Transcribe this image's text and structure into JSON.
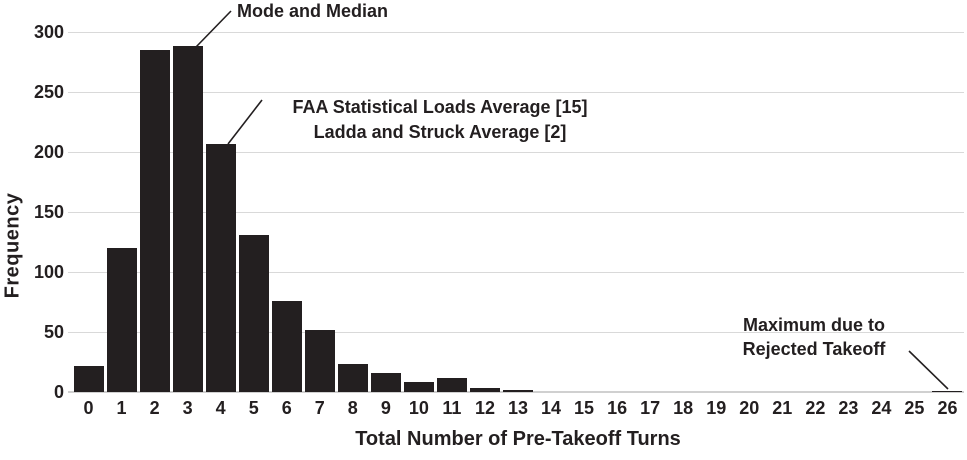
{
  "chart_data": {
    "type": "bar",
    "title": "",
    "xlabel": "Total Number of Pre-Takeoff Turns",
    "ylabel": "Frequency",
    "categories": [
      "0",
      "1",
      "2",
      "3",
      "4",
      "5",
      "6",
      "7",
      "8",
      "9",
      "10",
      "11",
      "12",
      "13",
      "14",
      "15",
      "16",
      "17",
      "18",
      "19",
      "20",
      "21",
      "22",
      "23",
      "24",
      "25",
      "26"
    ],
    "values": [
      22,
      120,
      285,
      288,
      207,
      131,
      76,
      52,
      23,
      16,
      8,
      12,
      3,
      2,
      0,
      0,
      0,
      0,
      0,
      0,
      0,
      0,
      0,
      0,
      0,
      0,
      1
    ],
    "ylim": [
      0,
      300
    ],
    "yticks": [
      0,
      50,
      100,
      150,
      200,
      250,
      300
    ],
    "grid": true,
    "legend": "none",
    "bar_color": "#231f20",
    "gridline_color": "#d9d9d9",
    "annotations": [
      {
        "id": "mode",
        "lines": [
          "Mode and Median"
        ],
        "target_category": "3"
      },
      {
        "id": "faa",
        "lines": [
          "FAA Statistical Loads Average [15]",
          "Ladda and Struck Average [2]"
        ],
        "target_category": "4"
      },
      {
        "id": "max",
        "lines": [
          "Maximum due to",
          "Rejected Takeoff"
        ],
        "target_category": "26"
      }
    ]
  }
}
